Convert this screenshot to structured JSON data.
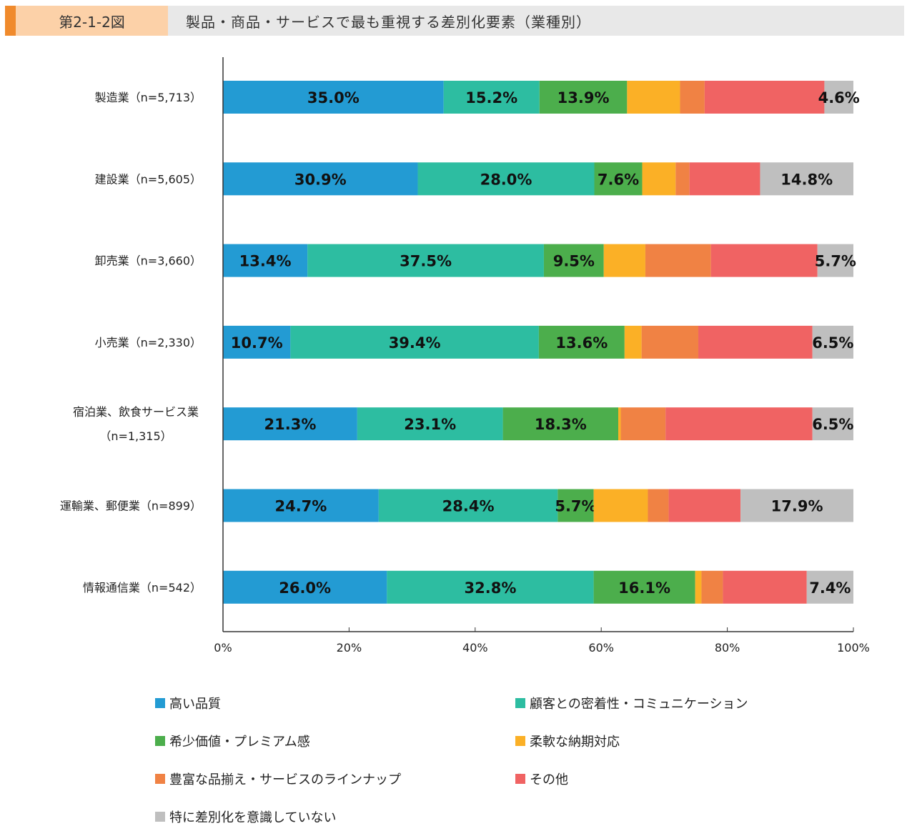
{
  "header": {
    "figure_number": "第2-1-2図",
    "title": "製品・商品・サービスで最も重視する差別化要素（業種別）"
  },
  "chart_data": {
    "type": "bar",
    "orientation": "horizontal",
    "stacked": true,
    "title": "製品・商品・サービスで最も重視する差別化要素（業種別）",
    "categories": [
      [
        "製造業（n=5,713）"
      ],
      [
        "建設業（n=5,605）"
      ],
      [
        "卸売業（n=3,660）"
      ],
      [
        "小売業（n=2,330）"
      ],
      [
        "宿泊業、飲食サービス業",
        "（n=1,315）"
      ],
      [
        "運輸業、郵便業（n=899）"
      ],
      [
        "情報通信業（n=542）"
      ]
    ],
    "xlim": [
      0,
      100
    ],
    "xticks": [
      "0%",
      "20%",
      "40%",
      "60%",
      "80%",
      "100%"
    ],
    "legend_placement": "bottom",
    "series": [
      {
        "name": "高い品質",
        "color": "#239bd3",
        "values": [
          35.0,
          30.9,
          13.4,
          10.7,
          21.3,
          24.7,
          26.0
        ],
        "labeled": true
      },
      {
        "name": "顧客との密着性・コミュニケーション",
        "color": "#2dbda1",
        "values": [
          15.2,
          28.0,
          37.5,
          39.4,
          23.1,
          28.4,
          32.8
        ],
        "labeled": true
      },
      {
        "name": "希少価値・プレミアム感",
        "color": "#4cae4c",
        "values": [
          13.9,
          7.6,
          9.5,
          13.6,
          18.3,
          5.7,
          16.1
        ],
        "labeled": true
      },
      {
        "name": "柔軟な納期対応",
        "color": "#fbb026",
        "values": [
          8.4,
          5.3,
          6.6,
          2.7,
          0.4,
          8.6,
          1.0
        ],
        "labeled": false
      },
      {
        "name": "豊富な品揃え・サービスのラインナップ",
        "color": "#f08244",
        "values": [
          3.9,
          2.2,
          10.4,
          9.0,
          7.1,
          3.3,
          3.4
        ],
        "labeled": false
      },
      {
        "name": "その他",
        "color": "#f06363",
        "values": [
          19.0,
          11.2,
          16.9,
          18.1,
          23.3,
          11.4,
          13.3
        ],
        "labeled": false
      },
      {
        "name": "特に差別化を意識していない",
        "color": "#bfbfbf",
        "values": [
          4.6,
          14.8,
          5.7,
          6.5,
          6.5,
          17.9,
          7.4
        ],
        "labeled": true
      }
    ]
  }
}
